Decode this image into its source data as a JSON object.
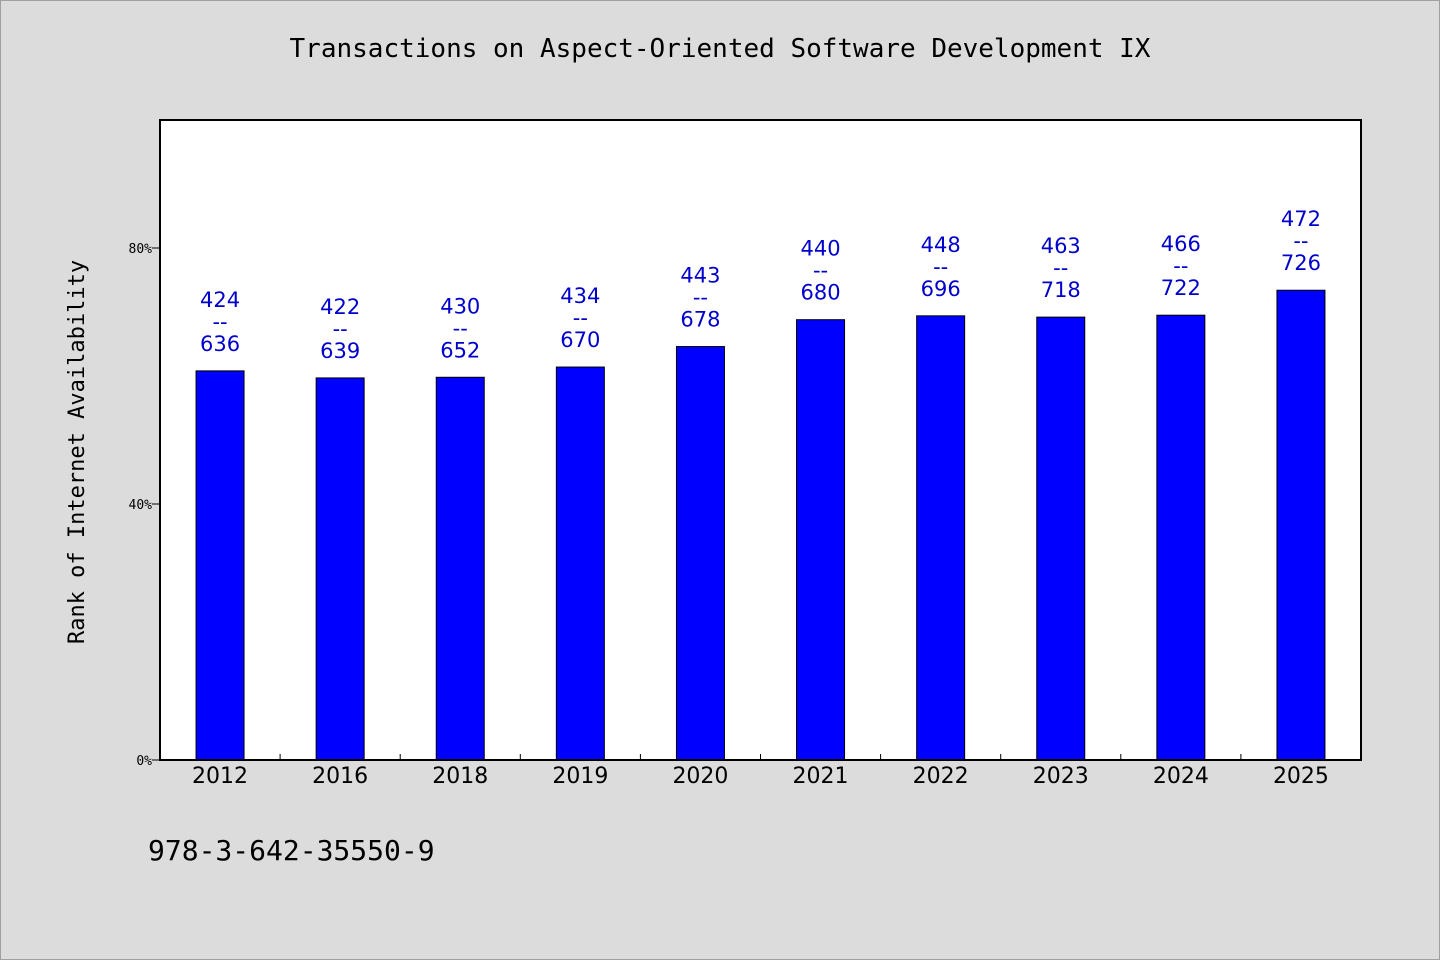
{
  "chart_data": {
    "type": "bar",
    "title": "Transactions on Aspect-Oriented Software Development IX",
    "xlabel": "",
    "ylabel": "Rank of Internet Availability",
    "categories": [
      "2012",
      "2016",
      "2018",
      "2019",
      "2020",
      "2021",
      "2022",
      "2023",
      "2024",
      "2025"
    ],
    "values": [
      60.8,
      59.7,
      59.8,
      61.4,
      64.6,
      68.8,
      69.4,
      69.2,
      69.5,
      73.4
    ],
    "labels": [
      [
        "424",
        "--",
        "636"
      ],
      [
        "422",
        "--",
        "639"
      ],
      [
        "430",
        "--",
        "652"
      ],
      [
        "434",
        "--",
        "670"
      ],
      [
        "443",
        "--",
        "678"
      ],
      [
        "440",
        "--",
        "680"
      ],
      [
        "448",
        "--",
        "696"
      ],
      [
        "463",
        "--",
        "718"
      ],
      [
        "466",
        "--",
        "722"
      ],
      [
        "472",
        "--",
        "726"
      ]
    ],
    "ylim": [
      0,
      100
    ],
    "yticks": [
      0,
      40,
      80
    ],
    "ytick_labels": [
      "0%",
      "40%",
      "80%"
    ],
    "bar_color": "#0000ff",
    "label_color": "#0000cc",
    "grid": false,
    "legend": "none"
  },
  "footnote": "978-3-642-35550-9"
}
